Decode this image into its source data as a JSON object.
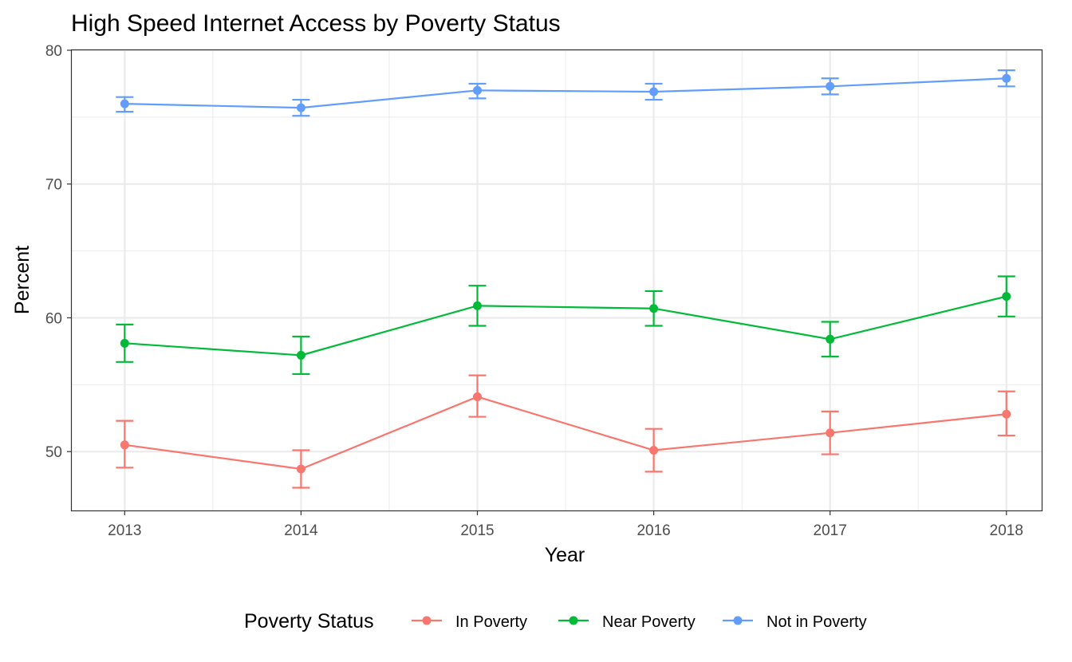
{
  "chart_data": {
    "type": "line",
    "title": "High Speed Internet Access by Poverty Status",
    "xlabel": "Year",
    "ylabel": "Percent",
    "x": [
      2013,
      2014,
      2015,
      2016,
      2017,
      2018
    ],
    "x_tick_labels": [
      "2013",
      "2014",
      "2015",
      "2016",
      "2017",
      "2018"
    ],
    "xlim": [
      2012.7,
      2018.2
    ],
    "y_ticks": [
      50,
      60,
      70,
      80
    ],
    "y_tick_labels": [
      "50",
      "60",
      "70",
      "80"
    ],
    "ylim": [
      45.6,
      80
    ],
    "grid": true,
    "error_bars": true,
    "legend": {
      "title": "Poverty Status",
      "position": "bottom"
    },
    "series": [
      {
        "name": "In Poverty",
        "color": "#F8766D",
        "values": [
          50.5,
          48.7,
          54.1,
          50.1,
          51.4,
          52.8
        ],
        "lower": [
          48.8,
          47.3,
          52.6,
          48.5,
          49.8,
          51.2
        ],
        "upper": [
          52.3,
          50.1,
          55.7,
          51.7,
          53.0,
          54.5
        ]
      },
      {
        "name": "Near Poverty",
        "color": "#00BA38",
        "values": [
          58.1,
          57.2,
          60.9,
          60.7,
          58.4,
          61.6
        ],
        "lower": [
          56.7,
          55.8,
          59.4,
          59.4,
          57.1,
          60.1
        ],
        "upper": [
          59.5,
          58.6,
          62.4,
          62.0,
          59.7,
          63.1
        ]
      },
      {
        "name": "Not in Poverty",
        "color": "#619CFF",
        "values": [
          76.0,
          75.7,
          77.0,
          76.9,
          77.3,
          77.9
        ],
        "lower": [
          75.4,
          75.1,
          76.4,
          76.3,
          76.7,
          77.3
        ],
        "upper": [
          76.5,
          76.3,
          77.5,
          77.5,
          77.9,
          78.5
        ]
      }
    ]
  }
}
